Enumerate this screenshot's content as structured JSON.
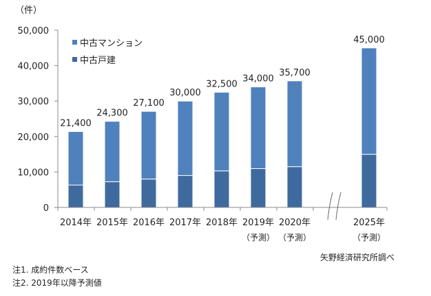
{
  "chart_data": {
    "type": "bar",
    "stacked": true,
    "unit_label": "（件）",
    "categories": [
      "2014年",
      "2015年",
      "2016年",
      "2017年",
      "2018年",
      "2019年",
      "2020年",
      "2025年"
    ],
    "category_sublabels": [
      "",
      "",
      "",
      "",
      "",
      "（予測）",
      "（予測）",
      "（予測）"
    ],
    "totals": [
      21400,
      24300,
      27100,
      30000,
      32500,
      34000,
      35700,
      45000
    ],
    "total_labels": [
      "21,400",
      "24,300",
      "27,100",
      "30,000",
      "32,500",
      "34,000",
      "35,700",
      "45,000"
    ],
    "series": [
      {
        "name": "中古戸建",
        "color": "#3F6A9E",
        "values": [
          6300,
          7250,
          8000,
          9000,
          10300,
          10950,
          11500,
          15000
        ]
      },
      {
        "name": "中古マンション",
        "color": "#4F81BD",
        "values": [
          15100,
          17050,
          19100,
          21000,
          22200,
          23050,
          24200,
          30000
        ]
      }
    ],
    "ylim": [
      0,
      50000
    ],
    "yticks": [
      0,
      10000,
      20000,
      30000,
      40000,
      50000
    ],
    "ytick_labels": [
      "0",
      "10,000",
      "20,000",
      "30,000",
      "40,000",
      "50,000"
    ],
    "legend": {
      "placement": "top-left",
      "entries": [
        "中古マンション",
        "中古戸建"
      ]
    },
    "axis_break_before": "2025年",
    "grid": false
  },
  "notes": [
    "注1. 成約件数ベース",
    "注2. 2019年以降予測値"
  ],
  "source": "矢野経済研究所調べ"
}
